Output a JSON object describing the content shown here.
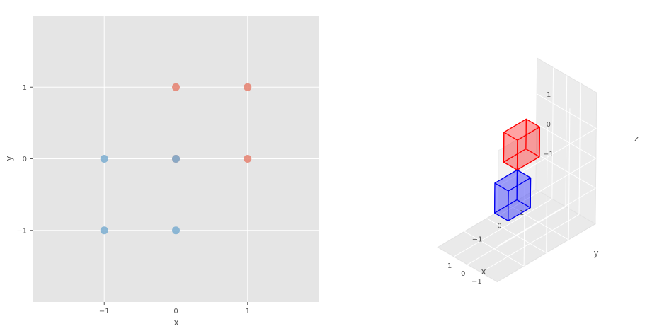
{
  "chart_data": [
    {
      "type": "scatter",
      "title": "",
      "xlabel": "x",
      "ylabel": "y",
      "xlim": [
        -2,
        2
      ],
      "ylim": [
        -2,
        2
      ],
      "xticks": [
        -1,
        0,
        1
      ],
      "yticks": [
        -1,
        0,
        1
      ],
      "xtick_labels": [
        "−1",
        "0",
        "1"
      ],
      "ytick_labels": [
        "−1",
        "0",
        "1"
      ],
      "grid": true,
      "background": "#e5e5e5",
      "series": [
        {
          "color": "#e5806e",
          "points": [
            [
              0,
              1
            ],
            [
              1,
              1
            ],
            [
              0,
              0
            ],
            [
              1,
              0
            ]
          ]
        },
        {
          "color": "#7aadd0",
          "points": [
            [
              -1,
              0
            ],
            [
              0,
              0
            ],
            [
              -1,
              -1
            ],
            [
              0,
              -1
            ]
          ]
        }
      ]
    },
    {
      "type": "3d-voxels",
      "title": "",
      "xlabel": "x",
      "ylabel": "y",
      "zlabel": "z",
      "xlim": [
        -2,
        2
      ],
      "ylim": [
        -2,
        2
      ],
      "zlim": [
        -2,
        2
      ],
      "xtick_labels": [
        "−1",
        "0",
        "1"
      ],
      "ytick_labels": [
        "−1",
        "0",
        "1"
      ],
      "ztick_labels": [
        "−1",
        "0",
        "1"
      ],
      "grid": true,
      "cubes": [
        {
          "min": [
            0,
            0,
            0
          ],
          "max": [
            1,
            1,
            1
          ],
          "edge_color": "#ff0000",
          "face_color": "#ff0000",
          "face_alpha": 0.2
        },
        {
          "min": [
            -1,
            -1,
            -1
          ],
          "max": [
            0,
            0,
            0
          ],
          "edge_color": "#0000ee",
          "face_color": "#0000ff",
          "face_alpha": 0.2
        }
      ]
    }
  ]
}
